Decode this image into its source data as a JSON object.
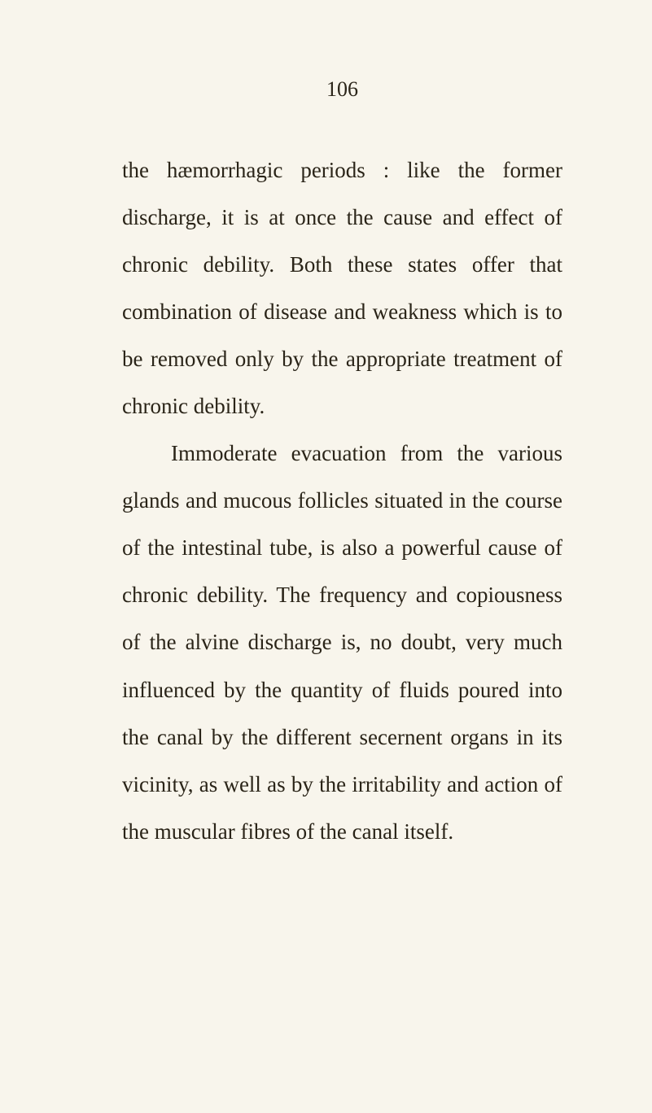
{
  "pageNumber": "106",
  "paragraphs": [
    {
      "text": "the hæmorrhagic periods : like the former discharge, it is at once the cause and effect of chronic debility. Both these states offer that combination of disease and weakness which is to be removed only by the appropriate treatment of chronic debility.",
      "indented": false
    },
    {
      "text": "Immoderate evacuation from the various glands and mucous follicles situated in the course of the intestinal tube, is also a powerful cause of chronic debility. The frequency and copiousness of the alvine discharge is, no doubt, very much influenced by the quantity of fluids poured into the canal by the different secernent organs in its vicinity, as well as by the irritability and action of the muscular fibres of the canal itself.",
      "indented": true
    }
  ],
  "colors": {
    "background": "#f8f5ec",
    "text": "#2a2418"
  },
  "typography": {
    "bodyFontSize": 27,
    "pageNumberFontSize": 26,
    "lineHeight": 2.15,
    "fontFamily": "Times New Roman"
  }
}
